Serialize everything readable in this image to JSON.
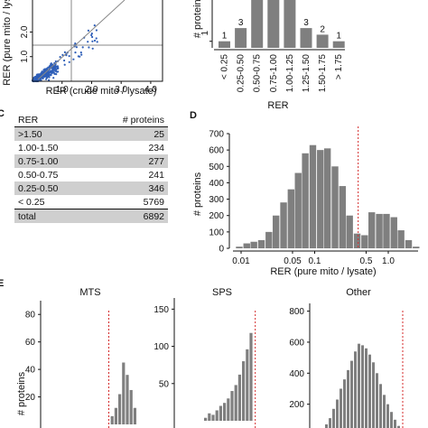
{
  "colors": {
    "bar": "#7f7f7f",
    "threshold": "#d42a2a",
    "scatter": "#2f5fb8",
    "shade": "#cfcfcf"
  },
  "panel_labels": {
    "c": "C",
    "d": "D",
    "e": "E"
  },
  "chart_data": [
    {
      "id": "scatter_a",
      "type": "scatter",
      "xlabel": "RER (crude mito / lysate)",
      "ylabel": "RER (pure mito / lysate)",
      "x_ticks": [
        "1.0",
        "2.0",
        "3.0",
        "4.0"
      ],
      "y_ticks": [
        "1.0",
        "2.0"
      ],
      "xlim": [
        0,
        4.4
      ],
      "ylim": [
        0,
        3.3
      ],
      "guide_lines": {
        "x": 1.0,
        "y": 1.0
      },
      "points_note": "dense cloud of about 6892 proteins"
    },
    {
      "id": "hist_b",
      "type": "bar",
      "ylabel": "# proteins",
      "xlabel": "RER",
      "categories": [
        "< 0.25",
        "0.25-0.50",
        "0.50-0.75",
        "0.75-1.00",
        "1.00-1.25",
        "1.25-1.50",
        "1.50-1.75",
        "> 1.75"
      ],
      "values": [
        1,
        3,
        10,
        10,
        9,
        3,
        2,
        1
      ],
      "data_labels": [
        "1",
        "3",
        "",
        "",
        "",
        "3",
        "2",
        "1"
      ],
      "y_ticks": [
        "1"
      ],
      "ylim": [
        0,
        10
      ]
    },
    {
      "id": "table_c",
      "type": "table",
      "columns": [
        "RER",
        "# proteins"
      ],
      "rows": [
        [
          ">1.50",
          "25"
        ],
        [
          "1.00-1.50",
          "234"
        ],
        [
          "0.75-1.00",
          "277"
        ],
        [
          "0.50-0.75",
          "241"
        ],
        [
          "0.25-0.50",
          "346"
        ],
        [
          "< 0.25",
          "5769"
        ]
      ],
      "total": [
        "total",
        "6892"
      ]
    },
    {
      "id": "hist_d",
      "type": "bar",
      "xlabel": "RER (pure mito / lysate)",
      "ylabel": "# proteins",
      "x_scale": "log",
      "x_ticks": [
        "0.01",
        "0.05",
        "0.1",
        "0.5",
        "1.0"
      ],
      "y_ticks": [
        "0",
        "100",
        "200",
        "300",
        "400",
        "500",
        "600",
        "700"
      ],
      "ylim": [
        0,
        700
      ],
      "threshold": 0.39,
      "bins": [
        {
          "x": 0.0095,
          "y": 10
        },
        {
          "x": 0.012,
          "y": 30
        },
        {
          "x": 0.015,
          "y": 40
        },
        {
          "x": 0.019,
          "y": 50
        },
        {
          "x": 0.024,
          "y": 100
        },
        {
          "x": 0.03,
          "y": 200
        },
        {
          "x": 0.038,
          "y": 280
        },
        {
          "x": 0.048,
          "y": 360
        },
        {
          "x": 0.06,
          "y": 460
        },
        {
          "x": 0.075,
          "y": 580
        },
        {
          "x": 0.095,
          "y": 630
        },
        {
          "x": 0.12,
          "y": 600
        },
        {
          "x": 0.15,
          "y": 610
        },
        {
          "x": 0.19,
          "y": 500
        },
        {
          "x": 0.24,
          "y": 380
        },
        {
          "x": 0.3,
          "y": 200
        },
        {
          "x": 0.38,
          "y": 90
        },
        {
          "x": 0.48,
          "y": 80
        },
        {
          "x": 0.6,
          "y": 220
        },
        {
          "x": 0.76,
          "y": 210
        },
        {
          "x": 0.95,
          "y": 210
        },
        {
          "x": 1.2,
          "y": 190
        },
        {
          "x": 1.5,
          "y": 110
        },
        {
          "x": 1.9,
          "y": 50
        },
        {
          "x": 2.4,
          "y": 10
        }
      ]
    },
    {
      "id": "hist_e_mts",
      "type": "bar",
      "title": "MTS",
      "ylabel": "# proteins",
      "y_ticks": [
        "20",
        "40",
        "60",
        "80"
      ],
      "ylim": [
        0,
        90
      ],
      "threshold_bin": 2.5,
      "values": [
        0,
        0,
        0,
        6,
        12,
        22,
        45,
        36,
        25,
        12
      ]
    },
    {
      "id": "hist_e_sps",
      "type": "bar",
      "title": "SPS",
      "y_ticks": [
        "50",
        "100",
        "150"
      ],
      "ylim": [
        0,
        165
      ],
      "threshold_bin": 13.5,
      "values": [
        4,
        10,
        8,
        14,
        20,
        24,
        30,
        40,
        48,
        62,
        80,
        96,
        118,
        0,
        0,
        0
      ]
    },
    {
      "id": "hist_e_other",
      "type": "bar",
      "title": "Other",
      "y_ticks": [
        "200",
        "400",
        "600",
        "800"
      ],
      "ylim": [
        0,
        850
      ],
      "threshold_bin": 23.5,
      "values": [
        20,
        40,
        70,
        110,
        170,
        230,
        300,
        360,
        420,
        480,
        540,
        590,
        580,
        560,
        520,
        470,
        400,
        330,
        260,
        200,
        150,
        100,
        60,
        30,
        0,
        15,
        25,
        20,
        8
      ]
    }
  ]
}
